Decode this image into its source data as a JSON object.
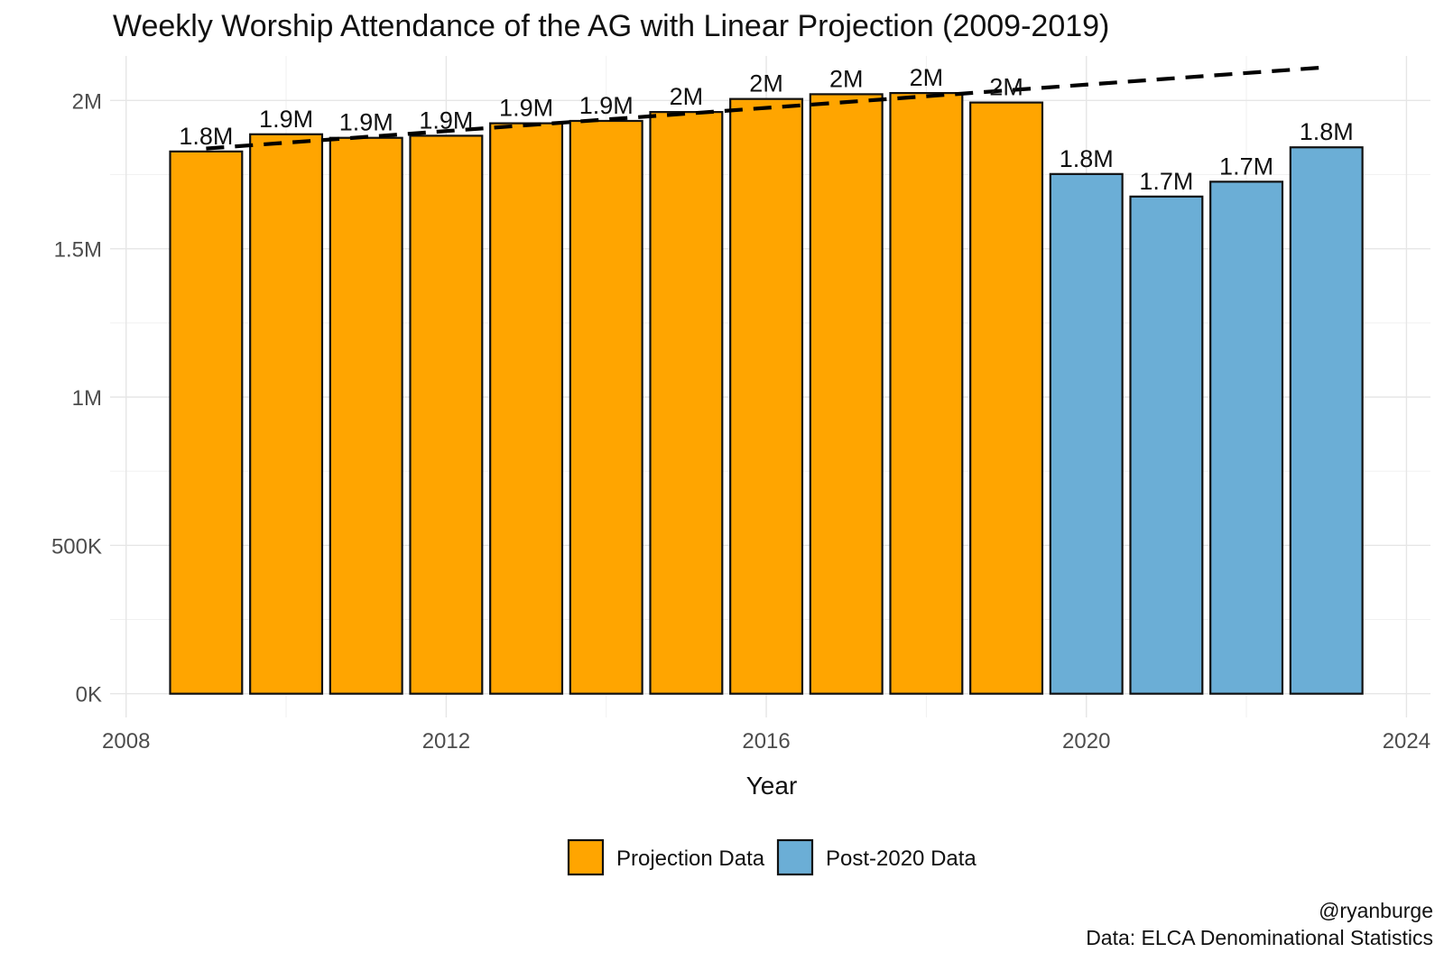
{
  "chart_data": {
    "type": "bar",
    "title": "Weekly Worship Attendance of the AG with Linear Projection (2009-2019)",
    "xlabel": "Year",
    "ylabel": "",
    "xlim": [
      2007.8,
      2024.3
    ],
    "ylim": [
      -80000,
      2150000
    ],
    "x_ticks": [
      2008,
      2012,
      2016,
      2020,
      2024
    ],
    "y_ticks": [
      0,
      500000,
      1000000,
      1500000,
      2000000
    ],
    "y_tick_labels": [
      "0K",
      "500K",
      "1M",
      "1.5M",
      "2M"
    ],
    "grid": true,
    "series": [
      {
        "name": "Projection Data",
        "color": "#FFA500",
        "x": [
          2009,
          2010,
          2011,
          2012,
          2013,
          2014,
          2015,
          2016,
          2017,
          2018,
          2019
        ],
        "values": [
          1828000,
          1886000,
          1874000,
          1881000,
          1923000,
          1931000,
          1961000,
          2005000,
          2021000,
          2025000,
          1993000
        ],
        "labels": [
          "1.8M",
          "1.9M",
          "1.9M",
          "1.9M",
          "1.9M",
          "1.9M",
          "2M",
          "2M",
          "2M",
          "2M",
          "2M"
        ]
      },
      {
        "name": "Post-2020 Data",
        "color": "#6BAED6",
        "x": [
          2020,
          2021,
          2022,
          2023
        ],
        "values": [
          1752000,
          1676000,
          1726000,
          1842000
        ],
        "labels": [
          "1.8M",
          "1.7M",
          "1.7M",
          "1.8M"
        ]
      }
    ],
    "projection_line": {
      "style": "dashed",
      "color": "#000000",
      "x": [
        2009,
        2023
      ],
      "y": [
        1838000,
        2112000
      ]
    },
    "legend": {
      "position": "bottom",
      "entries": [
        {
          "label": "Projection Data",
          "color": "#FFA500"
        },
        {
          "label": "Post-2020 Data",
          "color": "#6BAED6"
        }
      ]
    },
    "caption": [
      "@ryanburge",
      "Data: ELCA Denominational Statistics"
    ]
  }
}
